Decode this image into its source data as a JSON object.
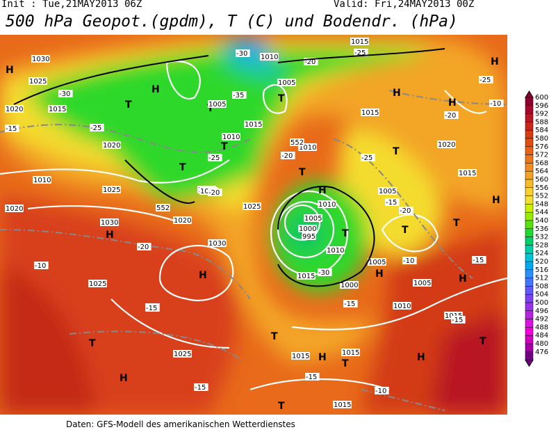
{
  "header": {
    "init": "Init : Tue,21MAY2013 06Z",
    "valid": "Valid: Fri,24MAY2013 00Z",
    "title": "500 hPa Geopot.(gpdm), T (C) und Bodendr. (hPa)"
  },
  "footer": "Daten: GFS-Modell des amerikanischen Wetterdienstes",
  "colorbar": {
    "labels": [
      600,
      596,
      592,
      588,
      584,
      580,
      576,
      572,
      568,
      564,
      560,
      556,
      552,
      548,
      544,
      540,
      536,
      532,
      528,
      524,
      520,
      516,
      512,
      508,
      504,
      500,
      496,
      492,
      488,
      484,
      480,
      476
    ],
    "colors": [
      "#8c0030",
      "#a4082c",
      "#b81826",
      "#c8281c",
      "#d63c12",
      "#e04e10",
      "#e86218",
      "#ec761c",
      "#f08c20",
      "#f4a224",
      "#f8ba28",
      "#f8d030",
      "#f0e030",
      "#c8f000",
      "#98ec00",
      "#58e010",
      "#20d830",
      "#00d068",
      "#00d0a8",
      "#00c4d8",
      "#00a8f0",
      "#2890f8",
      "#4474f8",
      "#6058f8",
      "#7c44f0",
      "#9834e8",
      "#b824e0",
      "#d814e0",
      "#f000d8",
      "#d000c0",
      "#a400a4",
      "#700080"
    ]
  },
  "map_labels": [
    "H",
    "H",
    "T",
    "T",
    "T",
    "T",
    "T",
    "H",
    "H",
    "H",
    "T",
    "H",
    "T",
    "H",
    "T",
    "H",
    "H",
    "T",
    "T",
    "T",
    "H",
    "H",
    "T",
    "T",
    "H",
    "H",
    "T",
    "T",
    "H",
    "T",
    "1030",
    "1025",
    "1020",
    "1015",
    "1010",
    "1005",
    "1020",
    "1015",
    "1010",
    "1005",
    "1015",
    "1010",
    "1020",
    "1025",
    "1025",
    "1030",
    "1030",
    "1025",
    "1025",
    "1010",
    "1005",
    "1000",
    "995",
    "1010",
    "1015",
    "1000",
    "1005",
    "1005",
    "1010",
    "1015",
    "1015",
    "1015",
    "1015",
    "1015",
    "1020",
    "1020",
    "1015",
    "1010",
    "1005",
    "1015",
    "1015",
    "-30",
    "-25",
    "-20",
    "-15",
    "-10",
    "-25",
    "-20",
    "-15",
    "-10",
    "-15",
    "-20",
    "-25",
    "-30",
    "-15",
    "-15",
    "-15",
    "-20",
    "-15",
    "-10",
    "-20",
    "-25",
    "-30",
    "-15",
    "-10",
    "-20",
    "-15",
    "552",
    "552",
    "-25",
    "-35"
  ]
}
